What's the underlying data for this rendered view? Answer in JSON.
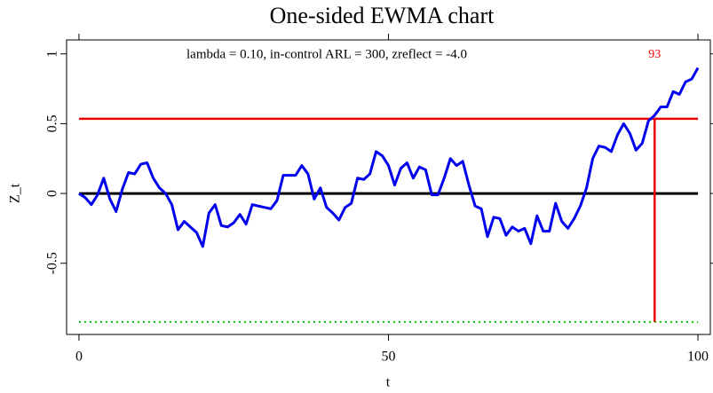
{
  "chart_data": {
    "type": "line",
    "title": "One-sided EWMA chart",
    "annotation": "lambda = 0.10, in-control ARL =  300, zreflect = -4.0",
    "x_label": "t",
    "y_label": "Z_t",
    "x": [
      0,
      1,
      2,
      3,
      4,
      5,
      6,
      7,
      8,
      9,
      10,
      11,
      12,
      13,
      14,
      15,
      16,
      17,
      18,
      19,
      20,
      21,
      22,
      23,
      24,
      25,
      26,
      27,
      28,
      29,
      30,
      31,
      32,
      33,
      34,
      35,
      36,
      37,
      38,
      39,
      40,
      41,
      42,
      43,
      44,
      45,
      46,
      47,
      48,
      49,
      50,
      51,
      52,
      53,
      54,
      55,
      56,
      57,
      58,
      59,
      60,
      61,
      62,
      63,
      64,
      65,
      66,
      67,
      68,
      69,
      70,
      71,
      72,
      73,
      74,
      75,
      76,
      77,
      78,
      79,
      80,
      81,
      82,
      83,
      84,
      85,
      86,
      87,
      88,
      89,
      90,
      91,
      92,
      93,
      94,
      95,
      96,
      97,
      98,
      99,
      100
    ],
    "values": [
      0,
      -0.03,
      -0.08,
      -0.01,
      0.11,
      -0.04,
      -0.13,
      0.03,
      0.15,
      0.14,
      0.21,
      0.22,
      0.11,
      0.04,
      0,
      -0.08,
      -0.26,
      -0.2,
      -0.24,
      -0.28,
      -0.38,
      -0.14,
      -0.08,
      -0.23,
      -0.24,
      -0.21,
      -0.15,
      -0.22,
      -0.08,
      -0.09,
      -0.1,
      -0.11,
      -0.05,
      0.13,
      0.13,
      0.13,
      0.2,
      0.14,
      -0.04,
      0.04,
      -0.1,
      -0.14,
      -0.19,
      -0.1,
      -0.07,
      0.11,
      0.1,
      0.14,
      0.3,
      0.27,
      0.2,
      0.06,
      0.18,
      0.22,
      0.11,
      0.19,
      0.17,
      -0.01,
      -0.01,
      0.11,
      0.25,
      0.2,
      0.23,
      0.06,
      -0.09,
      -0.11,
      -0.31,
      -0.17,
      -0.18,
      -0.3,
      -0.24,
      -0.27,
      -0.25,
      -0.36,
      -0.16,
      -0.27,
      -0.27,
      -0.07,
      -0.2,
      -0.25,
      -0.18,
      -0.09,
      0.04,
      0.25,
      0.34,
      0.33,
      0.3,
      0.42,
      0.5,
      0.43,
      0.31,
      0.36,
      0.52,
      0.56,
      0.62,
      0.62,
      0.73,
      0.71,
      0.8,
      0.82,
      0.9
    ],
    "color": "#0000ee",
    "center": 0,
    "center_color": "#000000",
    "ucl": 0.535,
    "ucl_color": "#ee0000",
    "reflect": -0.92,
    "reflect_color": "#00cc00",
    "signal_t": 93,
    "xlim": [
      -2,
      102
    ],
    "ylim": [
      -1.01,
      1.1
    ],
    "xticks": [
      0,
      50,
      100
    ],
    "yticks": [
      -0.5,
      0,
      0.5,
      1
    ]
  }
}
